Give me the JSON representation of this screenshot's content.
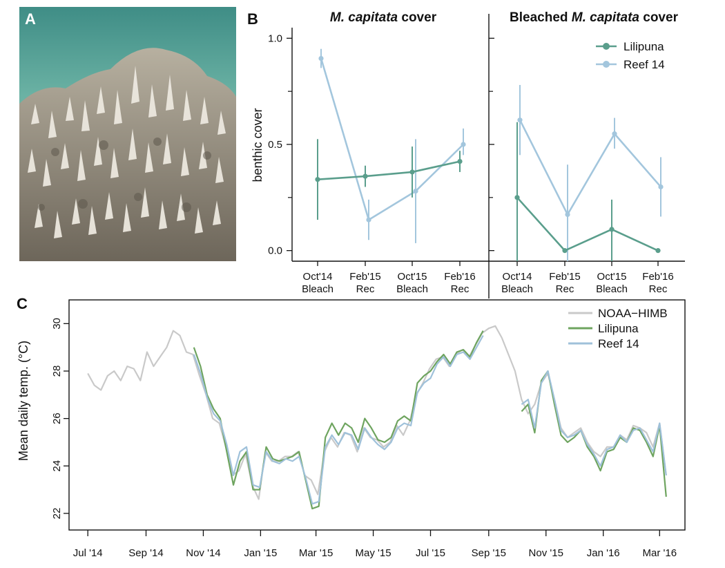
{
  "panels": {
    "a": "A",
    "b": "B",
    "c": "C"
  },
  "colors": {
    "lilipuna": "#5a9e8c",
    "reef14": "#a3c6dd",
    "noaa": "#c9c9c9",
    "lilipuna_c": "#6ea45f",
    "reef14_c": "#9fc1da"
  },
  "chart_data": [
    {
      "type": "line",
      "panel": "B-left",
      "title_italic": "M. capitata",
      "title_rest": " cover",
      "ylabel": "benthic cover",
      "ylim": [
        -0.05,
        1.05
      ],
      "yticks": [
        "0.0",
        "0.5",
        "1.0"
      ],
      "categories": [
        [
          "Oct'14",
          "Bleach"
        ],
        [
          "Feb'15",
          "Rec"
        ],
        [
          "Oct'15",
          "Bleach"
        ],
        [
          "Feb'16",
          "Rec"
        ]
      ],
      "series": [
        {
          "name": "Lilipuna",
          "values": [
            0.335,
            0.35,
            0.37,
            0.42
          ],
          "err": [
            [
              0.145,
              0.525
            ],
            [
              0.3,
              0.4
            ],
            [
              0.25,
              0.49
            ],
            [
              0.37,
              0.47
            ]
          ]
        },
        {
          "name": "Reef 14",
          "values": [
            0.905,
            0.145,
            0.28,
            0.5
          ],
          "err": [
            [
              0.86,
              0.95
            ],
            [
              0.05,
              0.24
            ],
            [
              0.035,
              0.525
            ],
            [
              0.45,
              0.575
            ]
          ]
        }
      ]
    },
    {
      "type": "line",
      "panel": "B-right",
      "title_plain": "Bleached ",
      "title_italic": "M. capitata",
      "title_rest": " cover",
      "ylim": [
        -0.05,
        1.05
      ],
      "categories": [
        [
          "Oct'14",
          "Bleach"
        ],
        [
          "Feb'15",
          "Rec"
        ],
        [
          "Oct'15",
          "Bleach"
        ],
        [
          "Feb'16",
          "Rec"
        ]
      ],
      "legend": [
        "Lilipuna",
        "Reef 14"
      ],
      "series": [
        {
          "name": "Lilipuna",
          "values": [
            0.25,
            0.0,
            0.1,
            0.0
          ],
          "err": [
            [
              -0.05,
              0.605
            ],
            null,
            [
              -0.05,
              0.24
            ],
            null
          ]
        },
        {
          "name": "Reef 14",
          "values": [
            0.615,
            0.17,
            0.55,
            0.3
          ],
          "err": [
            [
              0.45,
              0.78
            ],
            [
              -0.05,
              0.405
            ],
            [
              0.48,
              0.625
            ],
            [
              0.16,
              0.44
            ]
          ]
        }
      ]
    },
    {
      "type": "line",
      "panel": "C",
      "ylabel": "Mean daily temp. (°C)",
      "ylim": [
        21.3,
        31.0
      ],
      "yticks": [
        "22",
        "24",
        "26",
        "28",
        "30"
      ],
      "x_ticks": [
        "Jul '14",
        "Sep '14",
        "Nov '14",
        "Jan '15",
        "Mar '15",
        "May '15",
        "Jul '15",
        "Sep '15",
        "Nov '15",
        "Jan '16",
        "Mar '16"
      ],
      "x_tick_dates": [
        "2014-07-01",
        "2014-09-01",
        "2014-11-01",
        "2015-01-01",
        "2015-03-01",
        "2015-05-01",
        "2015-07-01",
        "2015-09-01",
        "2015-11-01",
        "2016-01-01",
        "2016-03-01"
      ],
      "x_range": [
        "2014-06-11",
        "2016-03-28"
      ],
      "legend": [
        "NOAA−HIMB",
        "Lilipuna",
        "Reef 14"
      ],
      "series": [
        {
          "name": "NOAA−HIMB",
          "x": [
            "2014-07-01",
            "2014-07-08",
            "2014-07-15",
            "2014-07-22",
            "2014-07-29",
            "2014-08-05",
            "2014-08-12",
            "2014-08-19",
            "2014-08-26",
            "2014-09-02",
            "2014-09-09",
            "2014-09-16",
            "2014-09-23",
            "2014-09-30",
            "2014-10-07",
            "2014-10-14",
            "2014-10-21",
            "2014-10-28",
            "2014-11-04",
            "2014-11-11",
            "2014-11-18",
            "2014-11-25",
            "2014-12-02",
            "2014-12-09",
            "2014-12-16",
            "2014-12-23",
            "2014-12-30",
            "2015-01-06",
            "2015-01-13",
            "2015-01-20",
            "2015-01-27",
            "2015-02-03",
            "2015-02-10",
            "2015-02-17",
            "2015-02-24",
            "2015-03-03",
            "2015-03-10",
            "2015-03-17",
            "2015-03-24",
            "2015-03-31",
            "2015-04-07",
            "2015-04-14",
            "2015-04-21",
            "2015-04-28",
            "2015-05-05",
            "2015-05-12",
            "2015-05-19",
            "2015-05-26",
            "2015-06-02",
            "2015-06-09",
            "2015-06-16",
            "2015-06-23",
            "2015-06-30",
            "2015-07-07",
            "2015-07-14",
            "2015-07-21",
            "2015-07-28",
            "2015-08-04",
            "2015-08-11",
            "2015-08-18",
            "2015-08-25",
            "2015-09-01",
            "2015-09-08",
            "2015-09-15",
            "2015-09-22",
            "2015-09-29",
            "2015-10-06",
            "2015-10-13",
            "2015-10-20",
            "2015-10-27",
            "2015-11-03",
            "2015-11-10",
            "2015-11-17",
            "2015-11-24",
            "2015-12-01",
            "2015-12-08",
            "2015-12-15",
            "2015-12-22",
            "2015-12-29",
            "2016-01-05",
            "2016-01-12",
            "2016-01-19",
            "2016-01-26",
            "2016-02-02",
            "2016-02-09",
            "2016-02-16",
            "2016-02-23",
            "2016-03-01",
            "2016-03-08"
          ],
          "values": [
            27.9,
            27.4,
            27.2,
            27.8,
            28.0,
            27.6,
            28.2,
            28.1,
            27.6,
            28.8,
            28.2,
            28.6,
            29.0,
            29.7,
            29.5,
            28.8,
            28.7,
            27.8,
            27.0,
            26.0,
            25.8,
            24.8,
            23.6,
            23.8,
            24.5,
            23.2,
            22.6,
            24.6,
            24.2,
            24.2,
            24.4,
            24.4,
            24.6,
            23.6,
            23.4,
            22.8,
            24.6,
            25.2,
            24.8,
            25.4,
            25.3,
            24.6,
            25.6,
            25.2,
            25.1,
            24.8,
            25.0,
            25.7,
            25.3,
            25.9,
            27.0,
            27.5,
            28.1,
            28.5,
            28.6,
            28.2,
            28.7,
            28.9,
            28.6,
            29.1,
            29.6,
            29.8,
            29.9,
            29.4,
            28.7,
            28.0,
            26.8,
            26.2,
            26.6,
            27.5,
            27.9,
            26.8,
            25.6,
            25.2,
            25.4,
            25.6,
            25.0,
            24.6,
            24.4,
            24.8,
            24.8,
            25.3,
            25.1,
            25.7,
            25.6,
            25.4,
            24.8,
            25.8,
            23.6
          ]
        },
        {
          "name": "Lilipuna",
          "x": [
            "2014-10-22",
            "2014-10-29",
            "2014-11-05",
            "2014-11-12",
            "2014-11-19",
            "2014-11-26",
            "2014-12-03",
            "2014-12-10",
            "2014-12-17",
            "2014-12-24",
            "2014-12-31",
            "2015-01-07",
            "2015-01-14",
            "2015-01-21",
            "2015-01-28",
            "2015-02-04",
            "2015-02-11",
            "2015-02-18",
            "2015-02-25",
            "2015-03-04",
            "2015-03-11",
            "2015-03-18",
            "2015-03-25",
            "2015-04-01",
            "2015-04-08",
            "2015-04-15",
            "2015-04-22",
            "2015-04-29",
            "2015-05-06",
            "2015-05-13",
            "2015-05-20",
            "2015-05-27",
            "2015-06-03",
            "2015-06-10",
            "2015-06-17",
            "2015-06-24",
            "2015-07-01",
            "2015-07-08",
            "2015-07-15",
            "2015-07-22",
            "2015-07-29",
            "2015-08-05",
            "2015-08-12",
            "2015-08-19",
            "2015-08-26",
            "2015-10-06",
            "2015-10-13",
            "2015-10-20",
            "2015-10-27",
            "2015-11-03",
            "2015-11-10",
            "2015-11-17",
            "2015-11-24",
            "2015-12-01",
            "2015-12-08",
            "2015-12-15",
            "2015-12-22",
            "2015-12-29",
            "2016-01-05",
            "2016-01-12",
            "2016-01-19",
            "2016-01-26",
            "2016-02-02",
            "2016-02-09",
            "2016-02-16",
            "2016-02-23",
            "2016-03-01",
            "2016-03-08"
          ],
          "values": [
            29.0,
            28.2,
            27.0,
            26.4,
            26.0,
            24.6,
            23.2,
            24.2,
            24.6,
            23.0,
            23.0,
            24.8,
            24.3,
            24.2,
            24.3,
            24.4,
            24.6,
            23.4,
            22.2,
            22.3,
            25.2,
            25.8,
            25.3,
            25.8,
            25.6,
            25.0,
            26.0,
            25.6,
            25.1,
            25.0,
            25.2,
            25.9,
            26.1,
            25.9,
            27.5,
            27.8,
            28.0,
            28.4,
            28.7,
            28.3,
            28.8,
            28.9,
            28.6,
            29.2,
            29.7,
            26.3,
            26.6,
            25.4,
            27.6,
            28.0,
            26.6,
            25.3,
            25.0,
            25.2,
            25.5,
            24.8,
            24.4,
            23.8,
            24.6,
            24.7,
            25.2,
            25.0,
            25.6,
            25.5,
            25.0,
            24.4,
            25.7,
            22.7
          ]
        },
        {
          "name": "Reef 14",
          "x": [
            "2014-10-22",
            "2014-10-29",
            "2014-11-05",
            "2014-11-12",
            "2014-11-19",
            "2014-11-26",
            "2014-12-03",
            "2014-12-10",
            "2014-12-17",
            "2014-12-24",
            "2014-12-31",
            "2015-01-07",
            "2015-01-14",
            "2015-01-21",
            "2015-01-28",
            "2015-02-04",
            "2015-02-11",
            "2015-02-18",
            "2015-02-25",
            "2015-03-04",
            "2015-03-11",
            "2015-03-18",
            "2015-03-25",
            "2015-04-01",
            "2015-04-08",
            "2015-04-15",
            "2015-04-22",
            "2015-04-29",
            "2015-05-06",
            "2015-05-13",
            "2015-05-20",
            "2015-05-27",
            "2015-06-03",
            "2015-06-10",
            "2015-06-17",
            "2015-06-24",
            "2015-07-01",
            "2015-07-08",
            "2015-07-15",
            "2015-07-22",
            "2015-07-29",
            "2015-08-05",
            "2015-08-12",
            "2015-08-19",
            "2015-08-26",
            "2015-10-06",
            "2015-10-13",
            "2015-10-20",
            "2015-10-27",
            "2015-11-03",
            "2015-11-10",
            "2015-11-17",
            "2015-11-24",
            "2015-12-01",
            "2015-12-08",
            "2015-12-15",
            "2015-12-22",
            "2015-12-29",
            "2016-01-05",
            "2016-01-12",
            "2016-01-19",
            "2016-01-26",
            "2016-02-02",
            "2016-02-09",
            "2016-02-16",
            "2016-02-23",
            "2016-03-01",
            "2016-03-08"
          ],
          "values": [
            28.7,
            27.9,
            26.9,
            26.2,
            25.9,
            24.9,
            23.6,
            24.6,
            24.8,
            23.2,
            23.1,
            24.6,
            24.2,
            24.1,
            24.3,
            24.2,
            24.4,
            23.5,
            22.4,
            22.5,
            24.8,
            25.3,
            24.9,
            25.4,
            25.3,
            24.7,
            25.6,
            25.2,
            24.9,
            24.7,
            25.0,
            25.6,
            25.8,
            25.7,
            27.1,
            27.5,
            27.7,
            28.3,
            28.6,
            28.2,
            28.7,
            28.8,
            28.5,
            29.0,
            29.5,
            26.6,
            26.8,
            25.6,
            27.5,
            28.0,
            26.8,
            25.5,
            25.2,
            25.3,
            25.5,
            24.9,
            24.5,
            24.0,
            24.7,
            24.8,
            25.3,
            25.0,
            25.5,
            25.6,
            25.1,
            24.6,
            25.8,
            23.6
          ]
        }
      ]
    }
  ]
}
